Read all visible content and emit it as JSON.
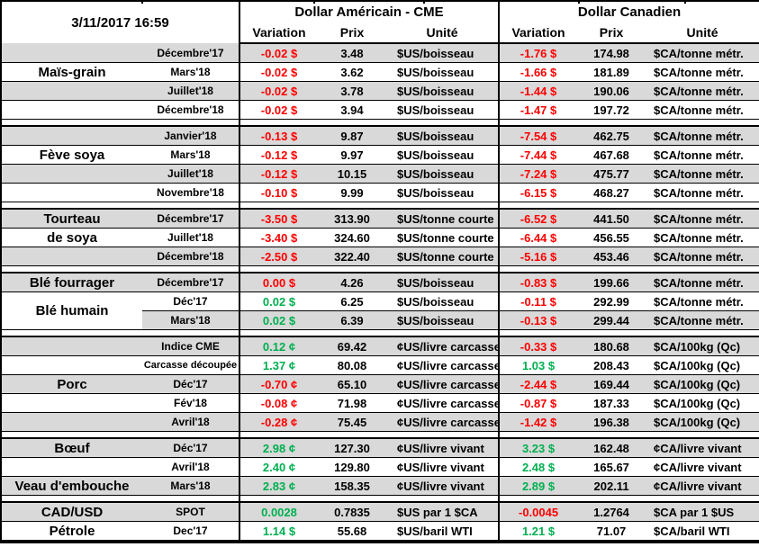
{
  "header": {
    "timestamp": "3/11/2017 16:59",
    "us_group": "Dollar Américain - CME",
    "ca_group": "Dollar Canadien",
    "columns": [
      "Variation",
      "Prix",
      "Unité"
    ]
  },
  "colors": {
    "negative": "#ff0000",
    "positive": "#00b050",
    "row_shade": "#d9d9d9"
  },
  "tick_positions": [
    157,
    348,
    470,
    642,
    760
  ],
  "sections": [
    {
      "name": "mais-grain",
      "rows": [
        {
          "commodity": "",
          "month": "Décembre'17",
          "shaded": true,
          "us": {
            "var": "-0.02 $",
            "dir": "neg",
            "prix": "3.48",
            "unit": "$US/boisseau"
          },
          "ca": {
            "var": "-1.76 $",
            "dir": "neg",
            "prix": "174.98",
            "unit": "$CA/tonne métr."
          }
        },
        {
          "commodity": "Maïs-grain",
          "month": "Mars'18",
          "shaded": false,
          "us": {
            "var": "-0.02 $",
            "dir": "neg",
            "prix": "3.62",
            "unit": "$US/boisseau"
          },
          "ca": {
            "var": "-1.66 $",
            "dir": "neg",
            "prix": "181.89",
            "unit": "$CA/tonne métr."
          }
        },
        {
          "commodity": "",
          "month": "Juillet'18",
          "shaded": true,
          "us": {
            "var": "-0.02 $",
            "dir": "neg",
            "prix": "3.78",
            "unit": "$US/boisseau"
          },
          "ca": {
            "var": "-1.44 $",
            "dir": "neg",
            "prix": "190.06",
            "unit": "$CA/tonne métr."
          }
        },
        {
          "commodity": "",
          "month": "Décembre'18",
          "shaded": false,
          "us": {
            "var": "-0.02 $",
            "dir": "neg",
            "prix": "3.94",
            "unit": "$US/boisseau"
          },
          "ca": {
            "var": "-1.47 $",
            "dir": "neg",
            "prix": "197.72",
            "unit": "$CA/tonne métr."
          }
        }
      ]
    },
    {
      "name": "feve-soya",
      "rows": [
        {
          "commodity": "",
          "month": "Janvier'18",
          "shaded": true,
          "us": {
            "var": "-0.13 $",
            "dir": "neg",
            "prix": "9.87",
            "unit": "$US/boisseau"
          },
          "ca": {
            "var": "-7.54 $",
            "dir": "neg",
            "prix": "462.75",
            "unit": "$CA/tonne métr."
          }
        },
        {
          "commodity": "Fève soya",
          "month": "Mars'18",
          "shaded": false,
          "us": {
            "var": "-0.12 $",
            "dir": "neg",
            "prix": "9.97",
            "unit": "$US/boisseau"
          },
          "ca": {
            "var": "-7.44 $",
            "dir": "neg",
            "prix": "467.68",
            "unit": "$CA/tonne métr."
          }
        },
        {
          "commodity": "",
          "month": "Juillet'18",
          "shaded": true,
          "us": {
            "var": "-0.12 $",
            "dir": "neg",
            "prix": "10.15",
            "unit": "$US/boisseau"
          },
          "ca": {
            "var": "-7.24 $",
            "dir": "neg",
            "prix": "475.77",
            "unit": "$CA/tonne métr."
          }
        },
        {
          "commodity": "",
          "month": "Novembre'18",
          "shaded": false,
          "us": {
            "var": "-0.10 $",
            "dir": "neg",
            "prix": "9.99",
            "unit": "$US/boisseau"
          },
          "ca": {
            "var": "-6.15 $",
            "dir": "neg",
            "prix": "468.27",
            "unit": "$CA/tonne métr."
          }
        }
      ]
    },
    {
      "name": "tourteau-de-soya",
      "rows": [
        {
          "commodity": "Tourteau",
          "month": "Décembre'17",
          "shaded": true,
          "us": {
            "var": "-3.50 $",
            "dir": "neg",
            "prix": "313.90",
            "unit": "$US/tonne courte"
          },
          "ca": {
            "var": "-6.52 $",
            "dir": "neg",
            "prix": "441.50",
            "unit": "$CA/tonne métr."
          }
        },
        {
          "commodity": "de soya",
          "month": "Juillet'18",
          "shaded": false,
          "us": {
            "var": "-3.40 $",
            "dir": "neg",
            "prix": "324.60",
            "unit": "$US/tonne courte"
          },
          "ca": {
            "var": "-6.44 $",
            "dir": "neg",
            "prix": "456.55",
            "unit": "$CA/tonne métr."
          }
        },
        {
          "commodity": "",
          "month": "Décembre'18",
          "shaded": true,
          "us": {
            "var": "-2.50 $",
            "dir": "neg",
            "prix": "322.40",
            "unit": "$US/tonne courte"
          },
          "ca": {
            "var": "-5.16 $",
            "dir": "neg",
            "prix": "453.46",
            "unit": "$CA/tonne métr."
          }
        }
      ]
    },
    {
      "name": "ble",
      "rows": [
        {
          "commodity": "Blé fourrager",
          "month": "Décembre'17",
          "shaded": true,
          "us": {
            "var": "0.00 $",
            "dir": "neg",
            "prix": "4.26",
            "unit": "$US/boisseau"
          },
          "ca": {
            "var": "-0.83 $",
            "dir": "neg",
            "prix": "199.66",
            "unit": "$CA/tonne métr."
          }
        },
        {
          "commodity": "Blé humain",
          "commodity_rowspan": 2,
          "month": "Déc'17",
          "shaded": false,
          "us": {
            "var": "0.02 $",
            "dir": "pos",
            "prix": "6.25",
            "unit": "$US/boisseau"
          },
          "ca": {
            "var": "-0.11 $",
            "dir": "neg",
            "prix": "292.99",
            "unit": "$CA/tonne métr."
          }
        },
        {
          "commodity": null,
          "month": "Mars'18",
          "shaded": true,
          "shade_from_month": true,
          "us": {
            "var": "0.02 $",
            "dir": "pos",
            "prix": "6.39",
            "unit": "$US/boisseau"
          },
          "ca": {
            "var": "-0.13 $",
            "dir": "neg",
            "prix": "299.44",
            "unit": "$CA/tonne métr."
          }
        }
      ]
    },
    {
      "name": "porc",
      "rows": [
        {
          "commodity": "",
          "month": "Indice CME",
          "shaded": true,
          "us": {
            "var": "0.12 ¢",
            "dir": "pos",
            "prix": "69.42",
            "unit": "¢US/livre carcasse"
          },
          "ca": {
            "var": "-0.33 $",
            "dir": "neg",
            "prix": "180.68",
            "unit": "$CA/100kg (Qc)"
          }
        },
        {
          "commodity": "",
          "month": "Carcasse découpée",
          "month_small": true,
          "shaded": false,
          "us": {
            "var": "1.37 ¢",
            "dir": "pos",
            "prix": "80.08",
            "unit": "¢US/livre carcasse"
          },
          "ca": {
            "var": "1.03 $",
            "dir": "pos",
            "prix": "208.43",
            "unit": "$CA/100kg (Qc)"
          }
        },
        {
          "commodity": "Porc",
          "month": "Déc'17",
          "shaded": true,
          "us": {
            "var": "-0.70 ¢",
            "dir": "neg",
            "prix": "65.10",
            "unit": "¢US/livre carcasse"
          },
          "ca": {
            "var": "-2.44 $",
            "dir": "neg",
            "prix": "169.44",
            "unit": "$CA/100kg (Qc)"
          }
        },
        {
          "commodity": "",
          "month": "Fév'18",
          "shaded": false,
          "us": {
            "var": "-0.08 ¢",
            "dir": "neg",
            "prix": "71.98",
            "unit": "¢US/livre carcasse"
          },
          "ca": {
            "var": "-0.87 $",
            "dir": "neg",
            "prix": "187.33",
            "unit": "$CA/100kg (Qc)"
          }
        },
        {
          "commodity": "",
          "month": "Avril'18",
          "shaded": true,
          "us": {
            "var": "-0.28 ¢",
            "dir": "neg",
            "prix": "75.45",
            "unit": "¢US/livre carcasse"
          },
          "ca": {
            "var": "-1.42 $",
            "dir": "neg",
            "prix": "196.38",
            "unit": "$CA/100kg (Qc)"
          }
        }
      ]
    },
    {
      "name": "boeuf-veau",
      "rows": [
        {
          "commodity": "Bœuf",
          "month": "Déc'17",
          "shaded": true,
          "us": {
            "var": "2.98 ¢",
            "dir": "pos",
            "prix": "127.30",
            "unit": "¢US/livre vivant"
          },
          "ca": {
            "var": "3.23 $",
            "dir": "pos",
            "prix": "162.48",
            "unit": "¢CA/livre vivant"
          }
        },
        {
          "commodity": "",
          "month": "Avril'18",
          "shaded": false,
          "us": {
            "var": "2.40 ¢",
            "dir": "pos",
            "prix": "129.80",
            "unit": "¢US/livre vivant"
          },
          "ca": {
            "var": "2.48 $",
            "dir": "pos",
            "prix": "165.67",
            "unit": "¢CA/livre vivant"
          }
        },
        {
          "commodity": "Veau d'embouche",
          "month": "Mars'18",
          "shaded": true,
          "us": {
            "var": "2.83 ¢",
            "dir": "pos",
            "prix": "158.35",
            "unit": "¢US/livre vivant"
          },
          "ca": {
            "var": "2.89 $",
            "dir": "pos",
            "prix": "202.11",
            "unit": "¢CA/livre vivant"
          }
        }
      ]
    },
    {
      "name": "cad-usd-petrole",
      "rows": [
        {
          "commodity": "CAD/USD",
          "month": "SPOT",
          "shaded": true,
          "us": {
            "var": "0.0028",
            "dir": "pos",
            "prix": "0.7835",
            "unit": "$US par 1 $CA"
          },
          "ca": {
            "var": "-0.0045",
            "dir": "neg",
            "prix": "1.2764",
            "unit": "$CA par 1 $US"
          }
        },
        {
          "commodity": "Pétrole",
          "month": "Dec'17",
          "shaded": false,
          "us": {
            "var": "1.14 $",
            "dir": "pos",
            "prix": "55.68",
            "unit": "$US/baril WTI"
          },
          "ca": {
            "var": "1.21 $",
            "dir": "pos",
            "prix": "71.07",
            "unit": "$CA/baril WTI"
          }
        }
      ]
    }
  ]
}
